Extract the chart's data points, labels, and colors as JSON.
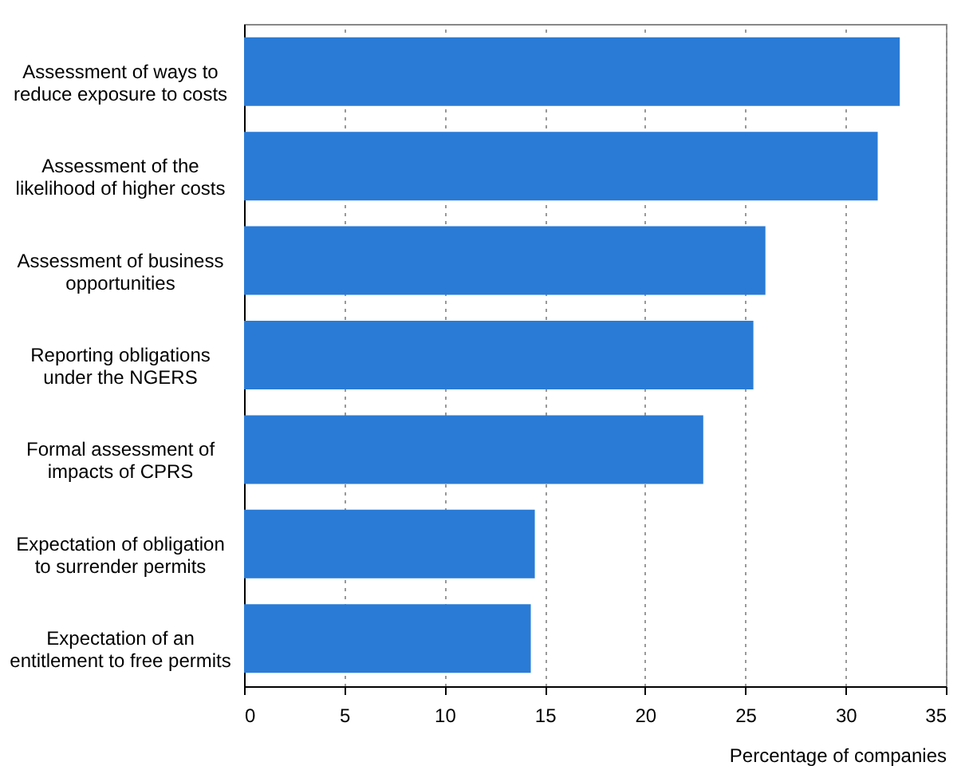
{
  "chart_data": {
    "type": "bar",
    "orientation": "horizontal",
    "xlabel": "Percentage of companies",
    "categories": [
      "Assessment of ways to\nreduce exposure to costs",
      "Assessment of the\nlikelihood of higher costs",
      "Assessment of business\nopportunities",
      "Reporting obligations\nunder the NGERS",
      "Formal assessment of\nimpacts of CPRS",
      "Expectation of obligation\nto surrender permits",
      "Expectation of an\nentitlement to free permits"
    ],
    "values": [
      32.7,
      31.6,
      26.0,
      25.4,
      22.9,
      14.5,
      14.3
    ],
    "color": "#2a7bd6",
    "xlim": [
      0,
      35
    ],
    "xticks": [
      0,
      5,
      10,
      15,
      20,
      25,
      30,
      35
    ],
    "grid": "x"
  }
}
